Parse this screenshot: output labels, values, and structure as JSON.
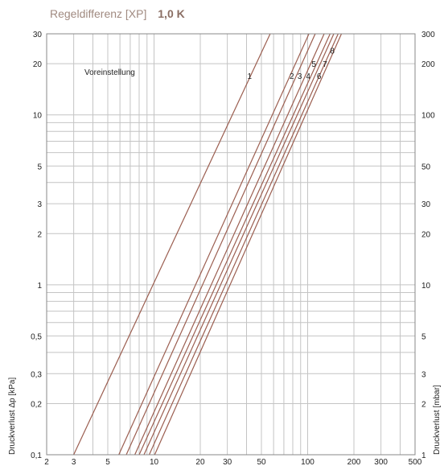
{
  "header": {
    "title_label": "Regeldifferenz [XP]",
    "title_value": "1,0 K"
  },
  "colors": {
    "curve": "#9b5e50",
    "grid": "#c4c4c4",
    "axis": "#888888",
    "title_light": "#a08a80",
    "title_bold": "#8a6e63"
  },
  "chart_data": {
    "type": "line",
    "x_scale": "log",
    "y_scale": "log",
    "xlim": [
      2,
      500
    ],
    "ylim": [
      0.1,
      30
    ],
    "x_ticks": [
      2,
      3,
      5,
      10,
      20,
      30,
      50,
      100,
      200,
      300,
      500
    ],
    "x_tick_labels": [
      "2",
      "3",
      "5",
      "10",
      "20",
      "30",
      "50",
      "100",
      "200",
      "300",
      "500"
    ],
    "y_ticks": [
      0.1,
      0.2,
      0.3,
      0.5,
      1,
      2,
      3,
      5,
      10,
      20,
      30
    ],
    "y_tick_labels_left": [
      "0,1",
      "0,2",
      "0,3",
      "0,5",
      "1",
      "2",
      "3",
      "5",
      "10",
      "20",
      "30"
    ],
    "y_tick_labels_right": [
      "1",
      "2",
      "3",
      "5",
      "10",
      "20",
      "30",
      "50",
      "100",
      "200",
      "300"
    ],
    "ylabel_left": "Druckverlust Δp [kPa]",
    "ylabel_right": "Druckverlust [mbar]",
    "annotation": "Voreinstellung",
    "grid": true,
    "series": [
      {
        "label": "1",
        "x": [
          3.0,
          57.0
        ],
        "y": [
          0.1,
          30
        ]
      },
      {
        "label": "2",
        "x": [
          5.9,
          102
        ],
        "y": [
          0.1,
          30
        ]
      },
      {
        "label": "3",
        "x": [
          6.6,
          112
        ],
        "y": [
          0.1,
          30
        ]
      },
      {
        "label": "4",
        "x": [
          7.5,
          128
        ],
        "y": [
          0.1,
          30
        ]
      },
      {
        "label": "5",
        "x": [
          8.0,
          140
        ],
        "y": [
          0.1,
          30
        ]
      },
      {
        "label": "6",
        "x": [
          8.6,
          148
        ],
        "y": [
          0.1,
          30
        ]
      },
      {
        "label": "7",
        "x": [
          9.3,
          158
        ],
        "y": [
          0.1,
          30
        ]
      },
      {
        "label": "8",
        "x": [
          10.1,
          166
        ],
        "y": [
          0.1,
          30
        ]
      }
    ],
    "label_points": [
      {
        "label": "1",
        "x": 42,
        "y": 17
      },
      {
        "label": "2",
        "x": 79,
        "y": 17
      },
      {
        "label": "3",
        "x": 89,
        "y": 17
      },
      {
        "label": "4",
        "x": 101,
        "y": 17
      },
      {
        "label": "5",
        "x": 110,
        "y": 20
      },
      {
        "label": "6",
        "x": 119,
        "y": 17
      },
      {
        "label": "7",
        "x": 130,
        "y": 20
      },
      {
        "label": "8",
        "x": 145,
        "y": 24
      }
    ]
  }
}
